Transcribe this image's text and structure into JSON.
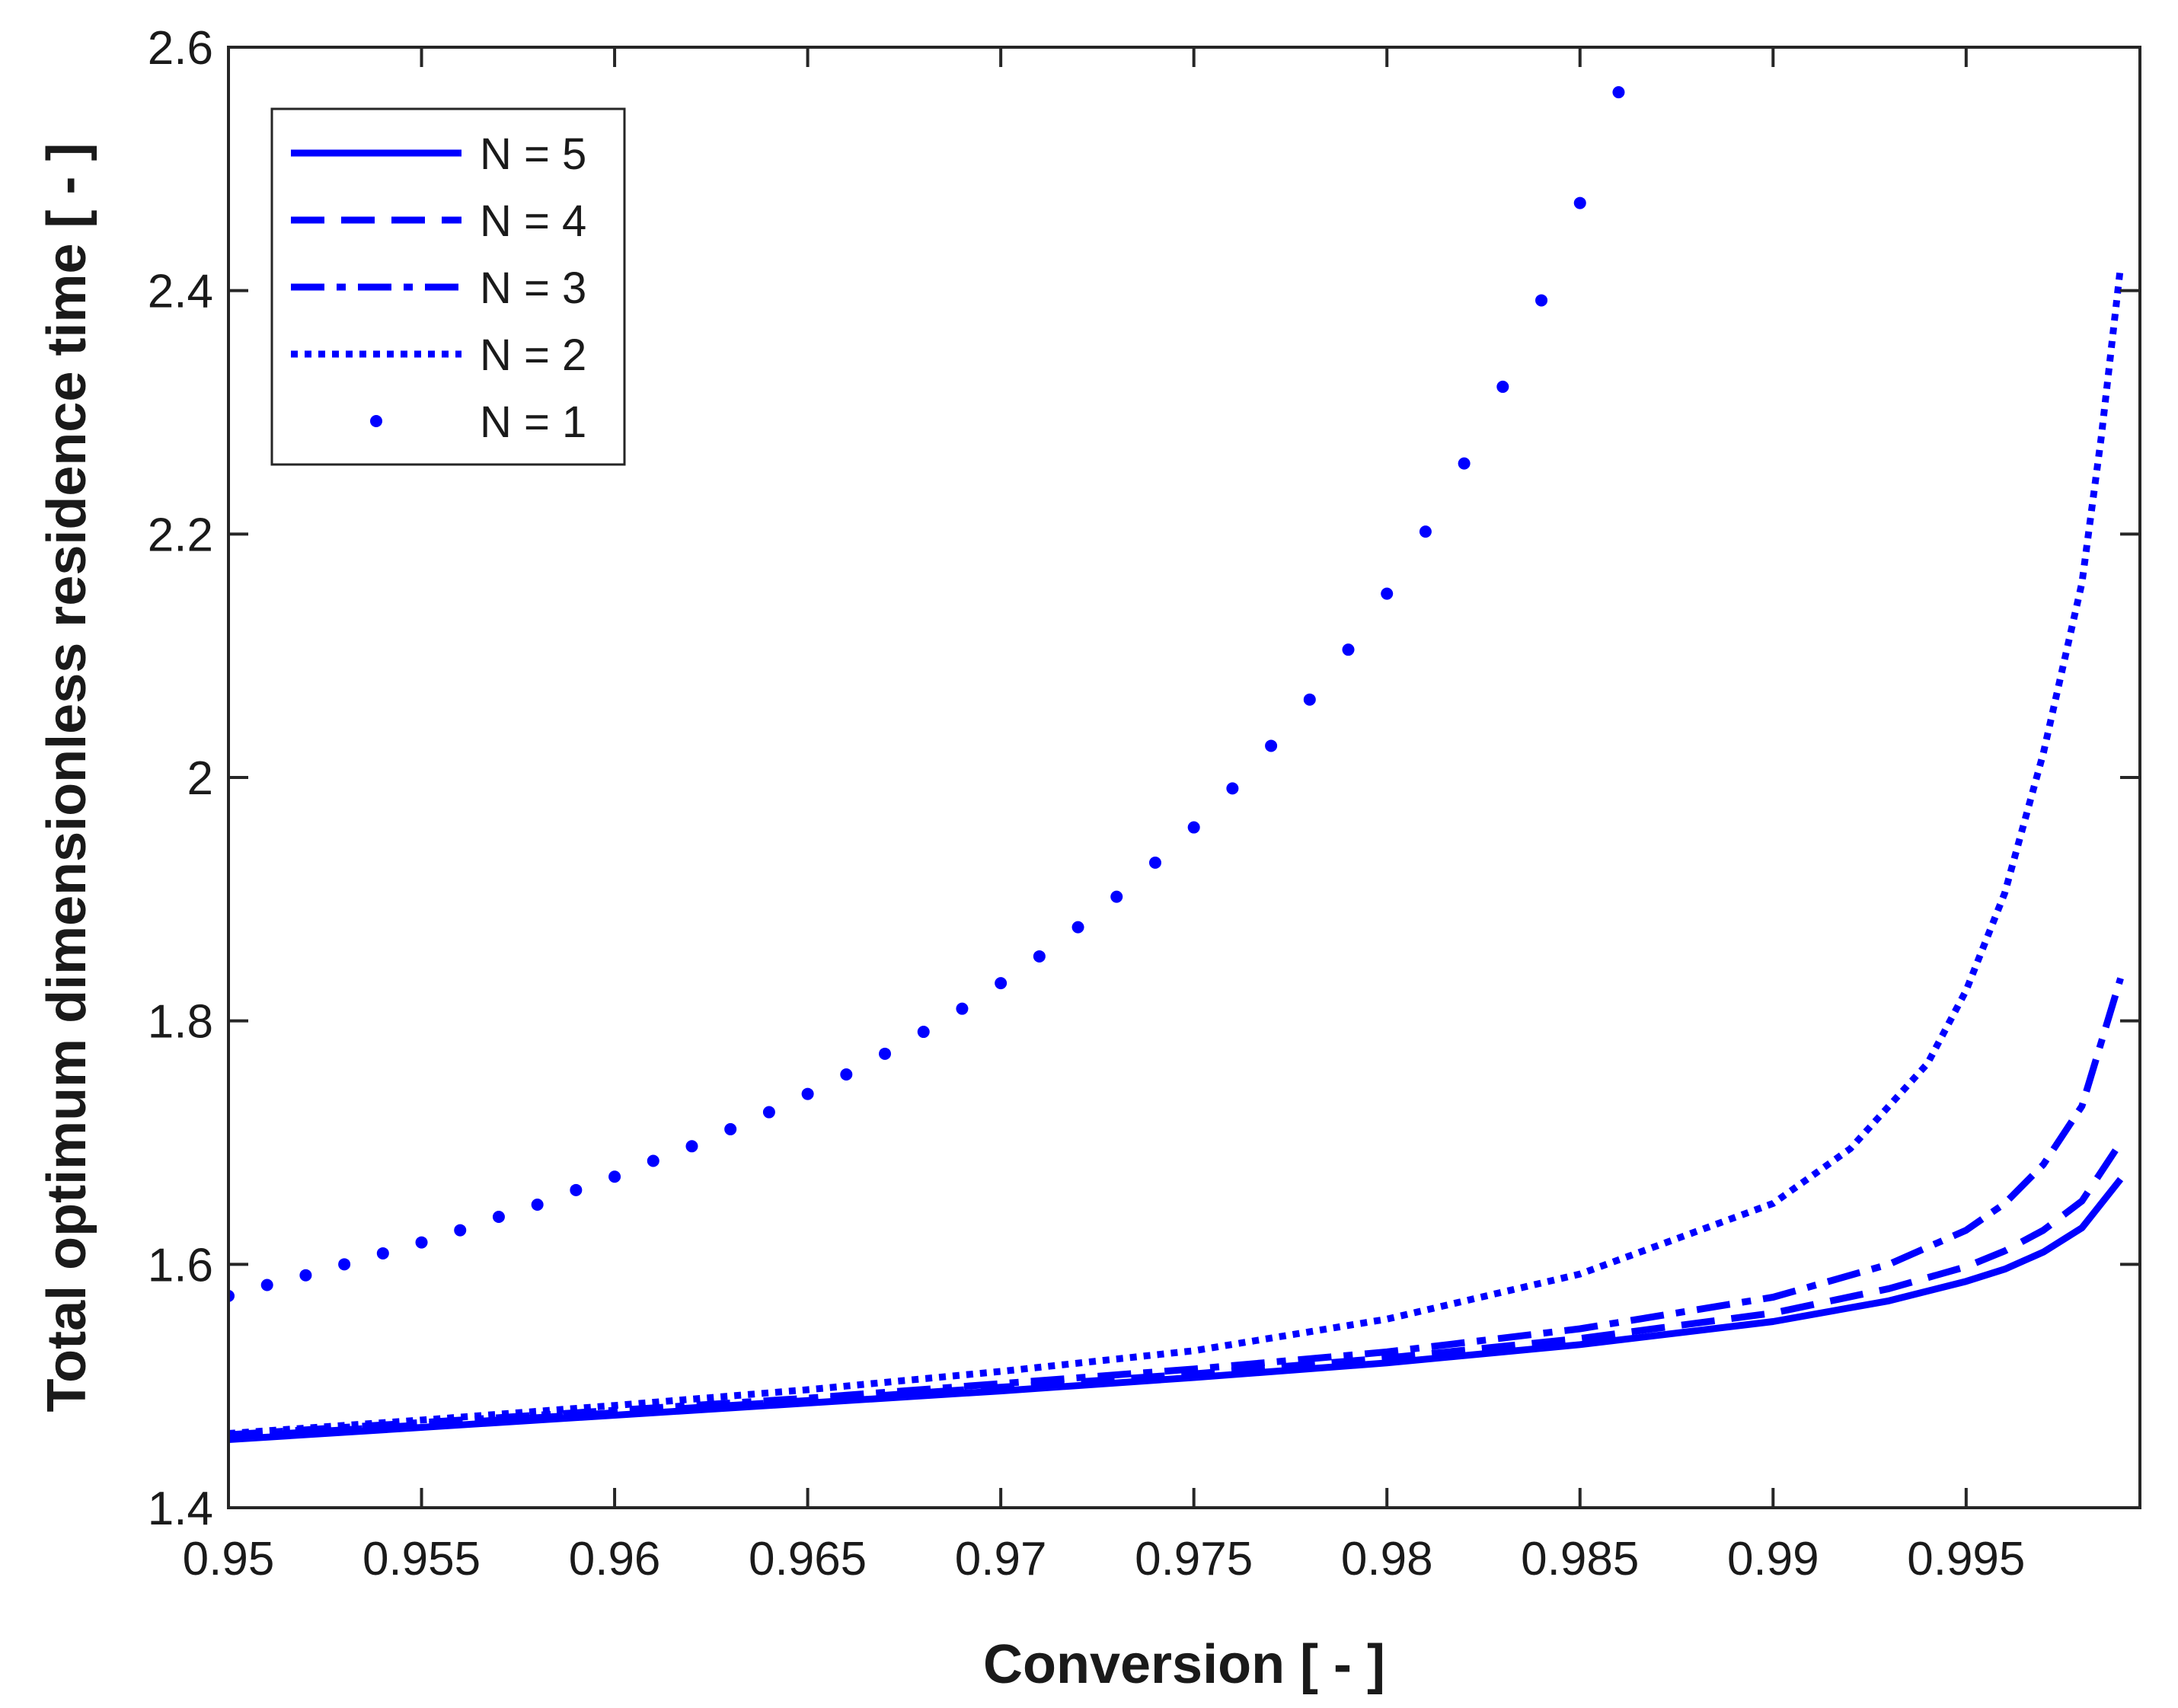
{
  "colors": {
    "series": "#0000FF",
    "axis": "#262626",
    "background": "#ffffff"
  },
  "chart_data": {
    "type": "line",
    "title": "",
    "xlabel": "Conversion [ - ]",
    "ylabel": "Total optimum dimensionless residence time [ - ]",
    "xlim": [
      0.95,
      0.9995
    ],
    "ylim": [
      1.4,
      2.6
    ],
    "xticks": [
      0.95,
      0.955,
      0.96,
      0.965,
      0.97,
      0.975,
      0.98,
      0.985,
      0.99,
      0.995
    ],
    "xtick_labels": [
      "0.95",
      "0.955",
      "0.96",
      "0.965",
      "0.97",
      "0.975",
      "0.98",
      "0.985",
      "0.99",
      "0.995"
    ],
    "yticks": [
      1.4,
      1.6,
      1.8,
      2.0,
      2.2,
      2.4,
      2.6
    ],
    "ytick_labels": [
      "1.4",
      "1.6",
      "1.8",
      "2",
      "2.2",
      "2.4",
      "2.6"
    ],
    "grid": false,
    "legend": {
      "position": "top-left",
      "boxed": true
    },
    "series": [
      {
        "name": "N = 5",
        "style": "solid",
        "x": [
          0.95,
          0.955,
          0.96,
          0.965,
          0.97,
          0.975,
          0.98,
          0.985,
          0.99,
          0.993,
          0.995,
          0.996,
          0.997,
          0.998,
          0.999
        ],
        "y": [
          1.456,
          1.466,
          1.476,
          1.486,
          1.496,
          1.507,
          1.519,
          1.534,
          1.553,
          1.57,
          1.586,
          1.596,
          1.61,
          1.63,
          1.67
        ]
      },
      {
        "name": "N = 4",
        "style": "dashed",
        "x": [
          0.95,
          0.955,
          0.96,
          0.965,
          0.97,
          0.975,
          0.98,
          0.985,
          0.99,
          0.993,
          0.995,
          0.996,
          0.997,
          0.998,
          0.999
        ],
        "y": [
          1.458,
          1.468,
          1.478,
          1.488,
          1.499,
          1.51,
          1.523,
          1.539,
          1.56,
          1.58,
          1.598,
          1.611,
          1.628,
          1.652,
          1.7
        ]
      },
      {
        "name": "N = 3",
        "style": "dashdot",
        "x": [
          0.95,
          0.955,
          0.96,
          0.965,
          0.97,
          0.975,
          0.98,
          0.985,
          0.99,
          0.993,
          0.995,
          0.996,
          0.997,
          0.998,
          0.999
        ],
        "y": [
          1.46,
          1.47,
          1.48,
          1.49,
          1.502,
          1.514,
          1.528,
          1.547,
          1.573,
          1.6,
          1.628,
          1.65,
          1.682,
          1.73,
          1.835
        ]
      },
      {
        "name": "N = 2",
        "style": "dotted",
        "x": [
          0.95,
          0.955,
          0.96,
          0.965,
          0.97,
          0.975,
          0.98,
          0.985,
          0.99,
          0.992,
          0.994,
          0.995,
          0.996,
          0.997,
          0.998,
          0.9985,
          0.999
        ],
        "y": [
          1.461,
          1.472,
          1.484,
          1.497,
          1.512,
          1.529,
          1.555,
          1.592,
          1.65,
          1.695,
          1.765,
          1.825,
          1.905,
          2.02,
          2.16,
          2.28,
          2.42
        ]
      },
      {
        "name": "N = 1",
        "style": "markers",
        "x": [
          0.95,
          0.951,
          0.952,
          0.953,
          0.954,
          0.955,
          0.956,
          0.957,
          0.958,
          0.959,
          0.96,
          0.961,
          0.962,
          0.963,
          0.964,
          0.965,
          0.966,
          0.967,
          0.968,
          0.969,
          0.97,
          0.971,
          0.972,
          0.973,
          0.974,
          0.975,
          0.976,
          0.977,
          0.978,
          0.979,
          0.98,
          0.981,
          0.982,
          0.983,
          0.984,
          0.985,
          0.986
        ],
        "y": [
          1.574,
          1.583,
          1.591,
          1.6,
          1.609,
          1.618,
          1.628,
          1.639,
          1.649,
          1.661,
          1.672,
          1.685,
          1.697,
          1.711,
          1.725,
          1.74,
          1.756,
          1.773,
          1.791,
          1.81,
          1.831,
          1.853,
          1.877,
          1.902,
          1.93,
          1.959,
          1.991,
          2.026,
          2.064,
          2.105,
          2.151,
          2.202,
          2.258,
          2.321,
          2.392,
          2.472,
          2.563
        ]
      }
    ]
  }
}
